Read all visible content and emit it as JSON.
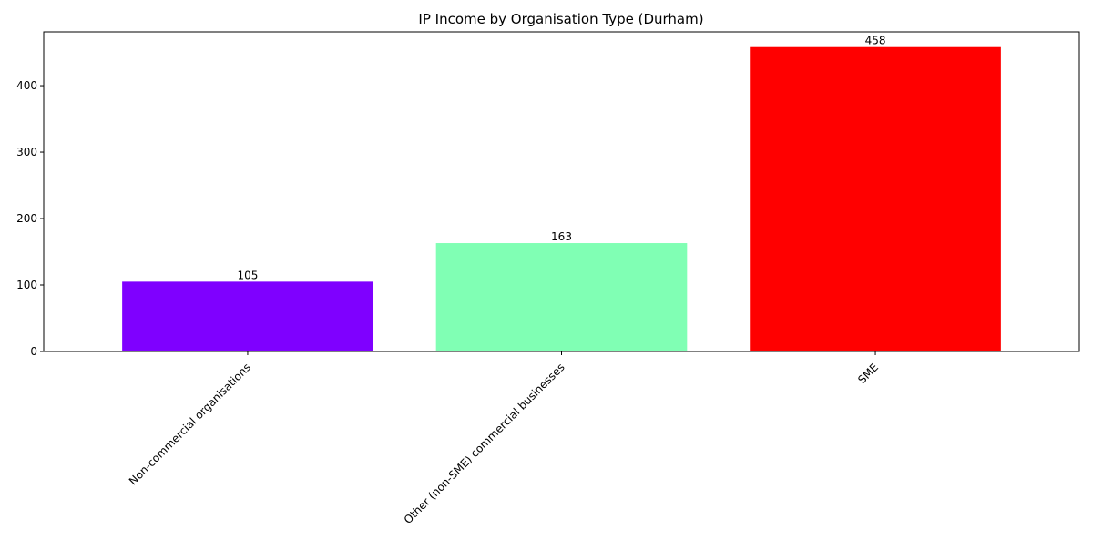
{
  "chart_data": {
    "type": "bar",
    "title": "IP Income by Organisation Type (Durham)",
    "xlabel": "",
    "ylabel": "",
    "categories": [
      "Non-commercial organisations",
      "Other (non-SME) commercial businesses",
      "SME"
    ],
    "values": [
      105,
      163,
      458
    ],
    "value_labels": [
      "105",
      "163",
      "458"
    ],
    "colors": [
      "#7f00ff",
      "#80ffb4",
      "#ff0000"
    ],
    "ylim": [
      0,
      480.9
    ],
    "yticks": [
      0,
      100,
      200,
      300,
      400
    ],
    "ytick_labels": [
      "0",
      "100",
      "200",
      "300",
      "400"
    ],
    "grid": false,
    "legend": "none"
  }
}
